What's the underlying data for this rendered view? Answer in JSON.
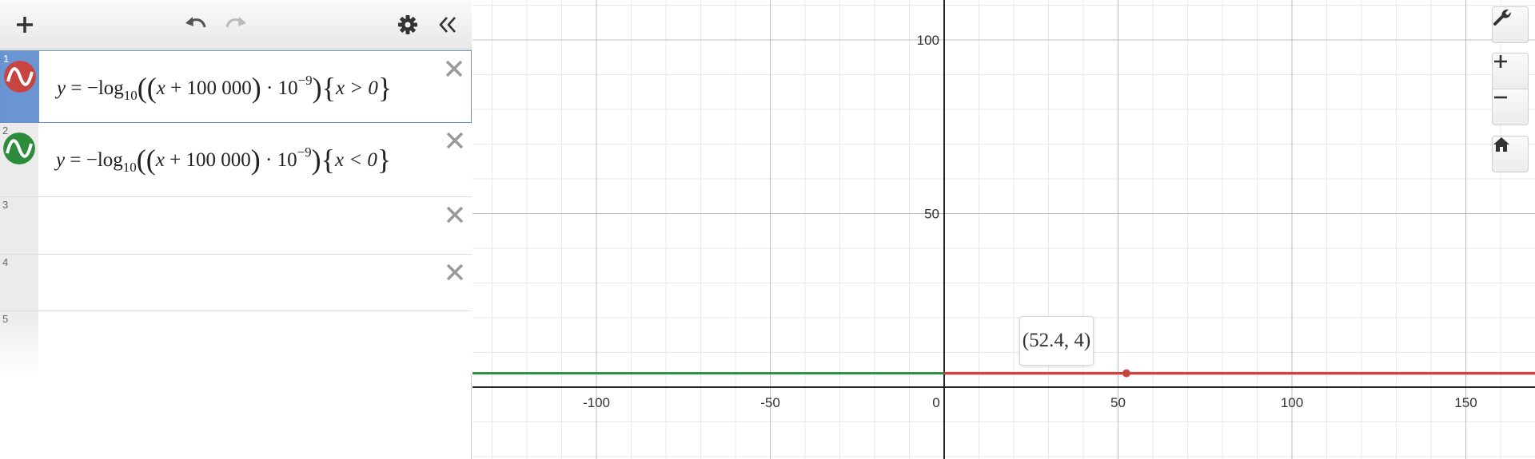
{
  "toolbar": {
    "add": "add-expression",
    "undo": "undo",
    "redo": "redo",
    "settings": "settings",
    "collapse": "collapse-list"
  },
  "expressions": [
    {
      "index": "1",
      "color": "#c74440",
      "latex_parts": {
        "lhs": "y",
        "eq": "=",
        "neg": "−log",
        "base": "10",
        "x": "x",
        "plus": "+",
        "c": "100 000",
        "dot": "·",
        "ten": "10",
        "exp": "−9",
        "cond": "x > 0"
      },
      "active": true
    },
    {
      "index": "2",
      "color": "#2d8c3c",
      "latex_parts": {
        "lhs": "y",
        "eq": "=",
        "neg": "−log",
        "base": "10",
        "x": "x",
        "plus": "+",
        "c": "100 000",
        "dot": "·",
        "ten": "10",
        "exp": "−9",
        "cond": "x < 0"
      },
      "active": false
    },
    {
      "index": "3"
    },
    {
      "index": "4"
    },
    {
      "index": "5"
    }
  ],
  "graph": {
    "x_ticks": [
      "-100",
      "-50",
      "0",
      "50",
      "100",
      "150"
    ],
    "y_ticks": [
      "50",
      "100"
    ],
    "tooltip": "(52.4, 4)",
    "series": [
      {
        "color": "#2d8c3c",
        "y": 4,
        "domain": "x < 0"
      },
      {
        "color": "#c74440",
        "y": 4,
        "domain": "x > 0"
      }
    ],
    "point": {
      "x": 52.4,
      "y": 4
    }
  }
}
